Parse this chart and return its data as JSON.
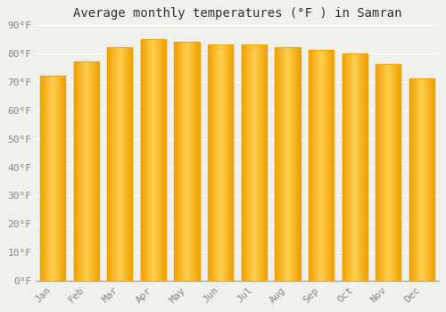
{
  "title": "Average monthly temperatures (°F ) in Samran",
  "months": [
    "Jan",
    "Feb",
    "Mar",
    "Apr",
    "May",
    "Jun",
    "Jul",
    "Aug",
    "Sep",
    "Oct",
    "Nov",
    "Dec"
  ],
  "values": [
    72,
    77,
    82,
    85,
    84,
    83,
    83,
    82,
    81,
    80,
    76,
    71
  ],
  "ylim": [
    0,
    90
  ],
  "yticks": [
    0,
    10,
    20,
    30,
    40,
    50,
    60,
    70,
    80,
    90
  ],
  "ytick_labels": [
    "0°F",
    "10°F",
    "20°F",
    "30°F",
    "40°F",
    "50°F",
    "60°F",
    "70°F",
    "80°F",
    "90°F"
  ],
  "bar_color_center": "#FFD050",
  "bar_color_edge": "#F0A000",
  "background_color": "#F0F0EC",
  "grid_color": "#FFFFFF",
  "title_fontsize": 10,
  "tick_fontsize": 8,
  "font_family": "monospace",
  "bar_width": 0.75,
  "n_gradient_strips": 40
}
